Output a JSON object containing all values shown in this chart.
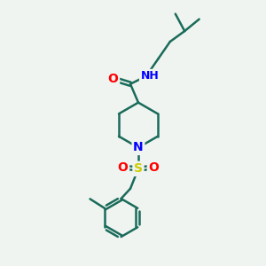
{
  "background_color": "#f0f4f0",
  "bond_color": "#1a6b5a",
  "bond_width": 1.8,
  "atom_colors": {
    "O": "#ff0000",
    "N": "#0000ff",
    "S": "#cccc00",
    "H": "#808080",
    "C": "#1a6b5a"
  },
  "figsize": [
    3.0,
    3.0
  ],
  "dpi": 100
}
